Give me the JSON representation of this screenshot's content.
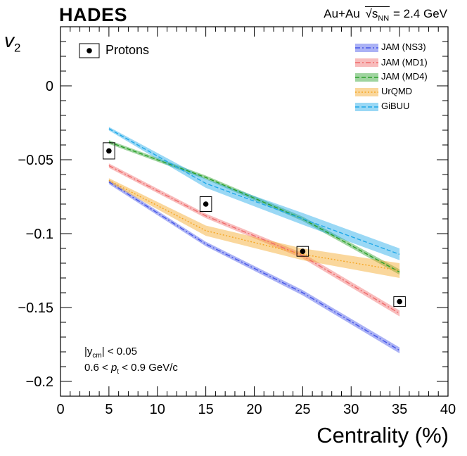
{
  "header": {
    "experiment": "HADES",
    "system": "Au+Au",
    "energy_symbol": "s",
    "energy_sub": "NN",
    "energy_value": " = 2.4 GeV"
  },
  "cuts": {
    "rapidity_left": "|y",
    "rapidity_sub": "cm",
    "rapidity_right": "| < 0.05",
    "pt_left": "0.6 < ",
    "pt_var": "p",
    "pt_sub": "t",
    "pt_right": " < 0.9 GeV/c"
  },
  "chart_data": {
    "type": "line",
    "title": "HADES Au+Au √sNN = 2.4 GeV",
    "xlabel": "Centrality (%)",
    "ylabel_symbol": "v",
    "ylabel_sub": "2",
    "xlim": [
      0,
      40
    ],
    "ylim": [
      -0.21,
      0.04
    ],
    "x_ticks": [
      0,
      5,
      10,
      15,
      20,
      25,
      30,
      35,
      40
    ],
    "x_tick_labels": [
      "0",
      "5",
      "10",
      "15",
      "20",
      "25",
      "30",
      "35",
      "40"
    ],
    "y_ticks": [
      0,
      -0.05,
      -0.1,
      -0.15,
      -0.2
    ],
    "y_tick_labels": [
      "0",
      "−0.05",
      "−0.1",
      "−0.15",
      "−0.2"
    ],
    "data_points": {
      "name": "Protons",
      "color": "#000000",
      "x": [
        5,
        15,
        25,
        35
      ],
      "y": [
        -0.044,
        -0.08,
        -0.112,
        -0.146
      ],
      "sys_dx": [
        0.6,
        0.6,
        0.6,
        0.6
      ],
      "sys_dy": [
        0.0055,
        0.005,
        0.003,
        0.0025
      ]
    },
    "series": [
      {
        "name": "JAM (NS3)",
        "color": "#4455e8",
        "style": "dashdot",
        "x": [
          5,
          15,
          25,
          35
        ],
        "y": [
          -0.065,
          -0.107,
          -0.14,
          -0.179
        ],
        "band": [
          0.0015,
          0.0015,
          0.0018,
          0.002
        ]
      },
      {
        "name": "JAM (MD1)",
        "color": "#f06a6a",
        "style": "dashdot",
        "x": [
          5,
          15,
          25,
          35
        ],
        "y": [
          -0.054,
          -0.088,
          -0.115,
          -0.154
        ],
        "band": [
          0.0015,
          0.0015,
          0.0018,
          0.002
        ]
      },
      {
        "name": "JAM (MD4)",
        "color": "#2aa02a",
        "style": "dashed",
        "x": [
          5,
          15,
          25,
          35
        ],
        "y": [
          -0.038,
          -0.062,
          -0.09,
          -0.126
        ],
        "band": [
          0.0013,
          0.0013,
          0.0015,
          0.0018
        ]
      },
      {
        "name": "UrQMD",
        "color": "#f5a623",
        "style": "dotted",
        "x": [
          5,
          15,
          25,
          35
        ],
        "y": [
          -0.064,
          -0.098,
          -0.114,
          -0.125
        ],
        "band": [
          0.0015,
          0.0035,
          0.004,
          0.005
        ]
      },
      {
        "name": "GiBUU",
        "color": "#1fa8e8",
        "style": "dashed",
        "x": [
          5,
          15,
          25,
          35
        ],
        "y": [
          -0.029,
          -0.066,
          -0.09,
          -0.114
        ],
        "band": [
          0.0012,
          0.003,
          0.004,
          0.004
        ]
      }
    ]
  }
}
